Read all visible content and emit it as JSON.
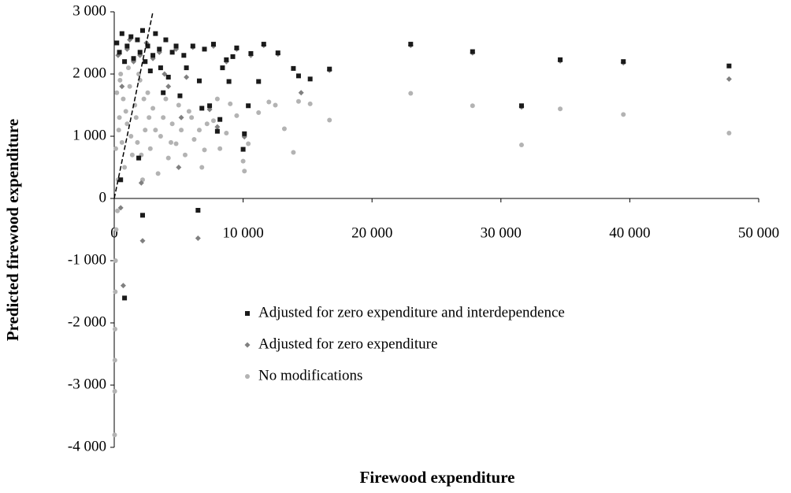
{
  "chart_data": {
    "type": "scatter",
    "x_label": "Firewood expenditure",
    "y_label": "Predicted firewood expenditure",
    "xlim": [
      0,
      50000
    ],
    "ylim": [
      -4000,
      3000
    ],
    "xticks": [
      0,
      {
        "value": 10000,
        "label": "10 000"
      },
      {
        "value": 20000,
        "label": "20 000"
      },
      {
        "value": 30000,
        "label": "30 000"
      },
      {
        "value": 40000,
        "label": "40 000"
      },
      {
        "value": 50000,
        "label": "50 000"
      }
    ],
    "yticks": [
      {
        "value": 3000,
        "label": "3 000"
      },
      {
        "value": 2000,
        "label": "2 000"
      },
      {
        "value": 1000,
        "label": "1 000"
      },
      0,
      {
        "value": -1000,
        "label": "-1 000"
      },
      {
        "value": -2000,
        "label": "-2 000"
      },
      {
        "value": -3000,
        "label": "-3 000"
      },
      {
        "value": -4000,
        "label": "-4 000"
      }
    ],
    "grid": false,
    "reference_line": {
      "x": [
        0,
        3000
      ],
      "y": [
        0,
        3000
      ],
      "color": "#000000"
    },
    "series": [
      {
        "name": "Adjusted for zero expenditure and interdependence",
        "color": "#1a1a1a",
        "marker": "square",
        "x": [
          23000,
          27800,
          31600,
          34600,
          39500,
          47700,
          16700,
          15200,
          14300,
          13900,
          12700,
          11600,
          11200,
          10600,
          10400,
          10100,
          10000,
          9500,
          9200,
          8900,
          8700,
          8200,
          8000,
          7700,
          7400,
          7000,
          6600,
          6500,
          6100,
          5600,
          5100,
          4800,
          4500,
          4200,
          4000,
          3600,
          3500,
          3200,
          3000,
          2800,
          2600,
          2400,
          2200,
          2000,
          1800,
          1500,
          1300,
          1000,
          800,
          600,
          400,
          200,
          2200,
          1900,
          800,
          500,
          3800,
          5400,
          6800,
          8400
        ],
        "values": [
          2480,
          2360,
          1490,
          2230,
          2200,
          2130,
          2080,
          1920,
          1970,
          2090,
          2340,
          2480,
          1880,
          2330,
          1490,
          1040,
          790,
          2420,
          2280,
          1880,
          2230,
          1270,
          1080,
          2480,
          1490,
          2400,
          1890,
          -190,
          2450,
          2100,
          1650,
          2450,
          2350,
          1950,
          2550,
          2100,
          2400,
          2650,
          2300,
          2050,
          2450,
          2200,
          2700,
          2350,
          2550,
          2250,
          2600,
          2450,
          2200,
          2650,
          2350,
          2500,
          -270,
          650,
          -1600,
          300,
          1700,
          2300,
          1450,
          2100
        ]
      },
      {
        "name": "Adjusted for zero expenditure",
        "color": "#808080",
        "marker": "diamond",
        "x": [
          23000,
          27800,
          31600,
          34600,
          39500,
          47700,
          16700,
          14500,
          12700,
          11600,
          10600,
          10100,
          9500,
          8700,
          7700,
          6500,
          7400,
          6100,
          5600,
          5000,
          4800,
          4200,
          3500,
          3000,
          2500,
          2200,
          2100,
          2000,
          1500,
          1200,
          1000,
          700,
          500,
          600,
          300,
          3900,
          5200,
          8000
        ],
        "values": [
          2460,
          2340,
          1470,
          2210,
          2180,
          1920,
          2060,
          1700,
          2320,
          2460,
          2300,
          990,
          2400,
          2200,
          2450,
          -640,
          1430,
          2430,
          1950,
          500,
          2400,
          1800,
          2350,
          2250,
          2500,
          -680,
          250,
          2300,
          2200,
          2550,
          2400,
          -1400,
          -150,
          1800,
          2300,
          2000,
          1300,
          1150
        ]
      },
      {
        "name": "No modifications",
        "color": "#b3b3b3",
        "marker": "circle",
        "x": [
          23000,
          27800,
          31600,
          34600,
          39500,
          47700,
          16700,
          15200,
          13900,
          14300,
          13200,
          12000,
          11200,
          10400,
          10100,
          10000,
          9500,
          9000,
          8700,
          8200,
          7700,
          7000,
          6600,
          6200,
          5800,
          5500,
          5000,
          4800,
          4500,
          4200,
          4000,
          3600,
          3400,
          3000,
          2800,
          2600,
          2400,
          2200,
          2000,
          1800,
          1600,
          1400,
          1200,
          1000,
          800,
          700,
          600,
          500,
          400,
          300,
          200,
          150,
          100,
          80,
          60,
          50,
          40,
          30,
          120,
          250,
          350,
          450,
          900,
          1100,
          1300,
          1700,
          1900,
          2100,
          2300,
          2700,
          3200,
          3800,
          4400,
          5200,
          6000,
          6800,
          7200,
          12500,
          8000
        ],
        "values": [
          1690,
          1490,
          860,
          1440,
          1350,
          1050,
          1260,
          1520,
          740,
          1560,
          1120,
          1550,
          1380,
          880,
          440,
          600,
          1330,
          1520,
          1050,
          800,
          1250,
          780,
          1100,
          950,
          1400,
          700,
          1500,
          880,
          1200,
          650,
          1600,
          1000,
          400,
          1450,
          800,
          1700,
          1100,
          300,
          1900,
          900,
          1500,
          700,
          1800,
          1200,
          500,
          1600,
          900,
          2000,
          1300,
          300,
          1700,
          -500,
          -1000,
          -1500,
          -2100,
          -2600,
          -3100,
          -3800,
          800,
          -200,
          1100,
          1900,
          1400,
          2100,
          1000,
          1300,
          2000,
          700,
          1600,
          1300,
          1100,
          1300,
          900,
          1100,
          1300,
          500,
          1200,
          1500,
          1600
        ]
      }
    ]
  }
}
